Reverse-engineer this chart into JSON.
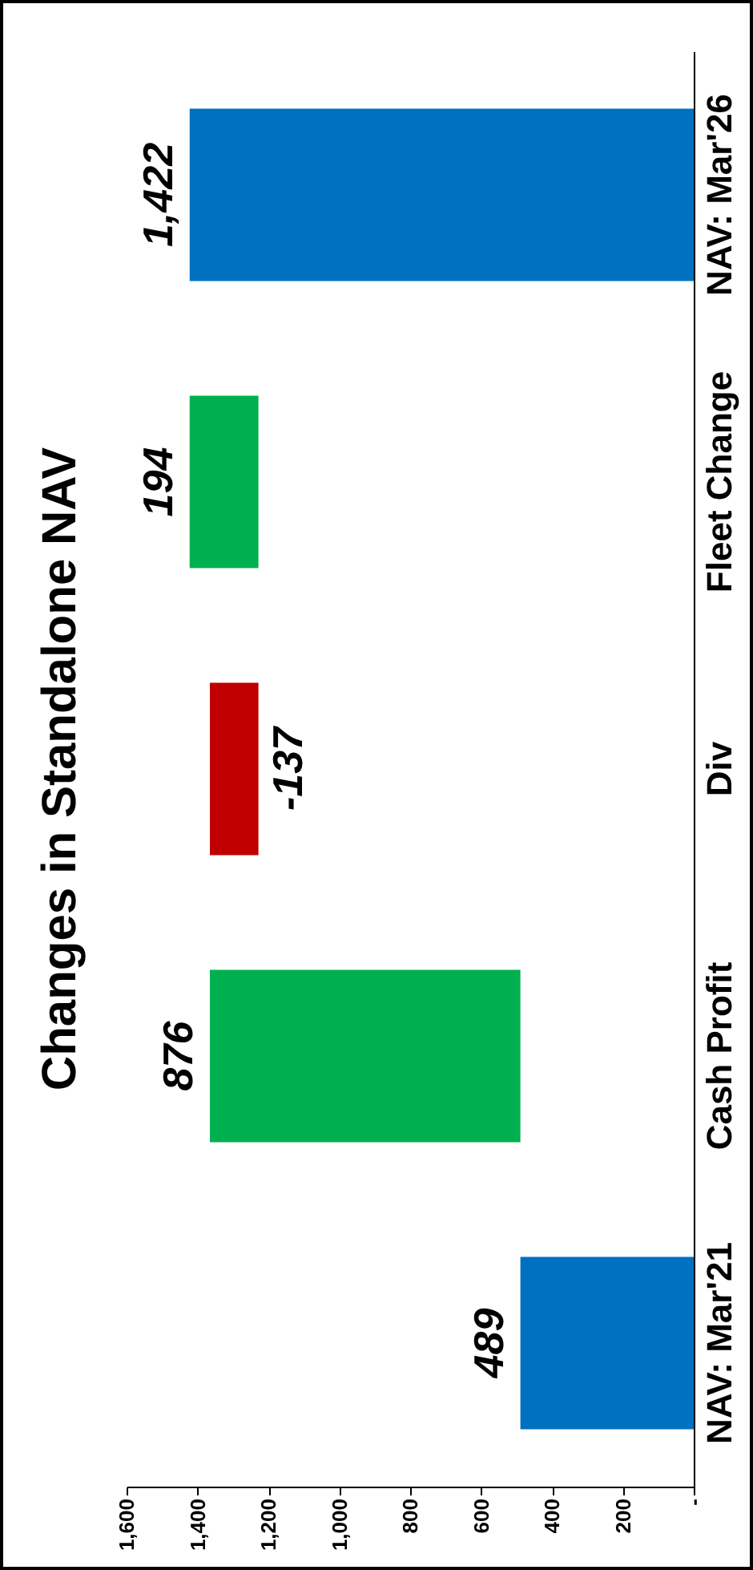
{
  "chart_data": {
    "type": "bar",
    "title": "Changes in Standalone NAV",
    "orientation": "horizontal",
    "categories": [
      "NAV: Mar'26",
      "Fleet Change",
      "Div",
      "Cash Profit",
      "NAV: Mar'21"
    ],
    "values": [
      1422,
      194,
      -137,
      876,
      489
    ],
    "base": [
      0,
      1228,
      1365,
      489,
      0
    ],
    "colors": [
      "#0070c0",
      "#00b050",
      "#c00000",
      "#00b050",
      "#0070c0"
    ],
    "value_labels": [
      "1,422",
      "194",
      "-137",
      "876",
      "489"
    ],
    "xlim": [
      1600,
      0
    ],
    "xticks": [
      {
        "value": 1600,
        "label": "1,600"
      },
      {
        "value": 1400,
        "label": "1,400"
      },
      {
        "value": 1200,
        "label": "1,200"
      },
      {
        "value": 1000,
        "label": "1,000"
      },
      800,
      600,
      400,
      200,
      {
        "value": 0,
        "label": "-"
      }
    ],
    "grid": false,
    "legend": false
  }
}
